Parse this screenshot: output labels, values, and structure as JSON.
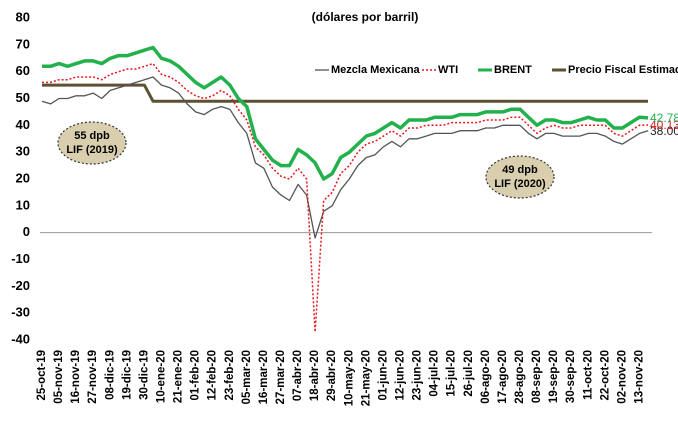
{
  "chart_data": {
    "type": "line",
    "subtitle": "(dólares por barril)",
    "categories": [
      "25-oct-19",
      null,
      "05-nov-19",
      null,
      "16-nov-19",
      null,
      "27-nov-19",
      null,
      "08-dic-19",
      null,
      "19-dic-19",
      null,
      "30-dic-19",
      null,
      "10-ene-20",
      null,
      "21-ene-20",
      null,
      "01-feb-20",
      null,
      "12-feb-20",
      null,
      "23-feb-20",
      null,
      "05-mar-20",
      null,
      "16-mar-20",
      null,
      "27-mar-20",
      null,
      "07-abr-20",
      null,
      "18-abr-20",
      null,
      "29-abr-20",
      null,
      "10-may-20",
      null,
      "21-may-20",
      null,
      "01-jun-20",
      null,
      "12-jun-20",
      null,
      "23-jun-20",
      null,
      "04-jul-20",
      null,
      "15-jul-20",
      null,
      "26-jul-20",
      null,
      "06-ago-20",
      null,
      "17-ago-20",
      null,
      "28-ago-20",
      null,
      "08-sep-20",
      null,
      "19-sep-20",
      null,
      "30-sep-20",
      null,
      "11-oct-20",
      null,
      "22-oct-20",
      null,
      "02-nov-20",
      null,
      "13-nov-20",
      null
    ],
    "series": [
      {
        "name": "Mezcla Mexicana",
        "color": "#555555",
        "style": "solid",
        "width": 1.3,
        "values": [
          49,
          48,
          50,
          50,
          51,
          51,
          52,
          50,
          53,
          54,
          55,
          56,
          57,
          58,
          55,
          54,
          52,
          48,
          45,
          44,
          46,
          47,
          46,
          41,
          37,
          26,
          24,
          17,
          14,
          12,
          18,
          14,
          -2,
          8,
          10,
          16,
          20,
          25,
          28,
          29,
          32,
          34,
          32,
          35,
          35,
          36,
          37,
          37,
          37,
          38,
          38,
          38,
          39,
          39,
          40,
          40,
          40,
          37,
          35,
          37,
          37,
          36,
          36,
          36,
          37,
          37,
          36,
          34,
          33,
          35,
          37,
          38.0
        ],
        "value_labels": [
          null,
          null,
          null,
          null,
          null,
          null,
          null,
          null,
          null,
          null,
          null,
          null,
          null,
          null,
          null,
          null,
          null,
          null,
          null,
          null,
          null,
          null,
          null,
          null,
          null,
          null,
          null,
          null,
          null,
          null,
          null,
          null,
          null,
          null,
          null,
          null,
          null,
          null,
          null,
          null,
          null,
          null,
          null,
          null,
          null,
          null,
          null,
          null,
          null,
          null,
          null,
          null,
          null,
          null,
          null,
          null,
          null,
          null,
          null,
          null,
          null,
          null,
          null,
          null,
          null,
          null,
          null,
          null,
          null,
          null,
          null,
          "38.00"
        ]
      },
      {
        "name": "WTI",
        "color": "#e8161c",
        "style": "dotted",
        "width": 1.5,
        "values": [
          56,
          56,
          57,
          57,
          58,
          58,
          58,
          57,
          59,
          60,
          61,
          61,
          62,
          63,
          59,
          58,
          56,
          53,
          51,
          50,
          51,
          53,
          51,
          46,
          42,
          32,
          29,
          24,
          21,
          20,
          24,
          20,
          -37,
          12,
          15,
          22,
          25,
          30,
          33,
          34,
          36,
          38,
          36,
          39,
          39,
          40,
          40,
          40,
          41,
          41,
          41,
          41,
          42,
          42,
          42,
          43,
          43,
          40,
          37,
          39,
          40,
          39,
          39,
          40,
          40,
          40,
          40,
          37,
          36,
          38,
          40,
          40.13
        ],
        "value_labels": [
          null,
          null,
          null,
          null,
          null,
          null,
          null,
          null,
          null,
          null,
          null,
          null,
          null,
          null,
          null,
          null,
          null,
          null,
          null,
          null,
          null,
          null,
          null,
          null,
          null,
          null,
          null,
          null,
          null,
          null,
          null,
          null,
          null,
          null,
          null,
          null,
          null,
          null,
          null,
          null,
          null,
          null,
          null,
          null,
          null,
          null,
          null,
          null,
          null,
          null,
          null,
          null,
          null,
          null,
          null,
          null,
          null,
          null,
          null,
          null,
          null,
          null,
          null,
          null,
          null,
          null,
          null,
          null,
          null,
          null,
          null,
          "40.13"
        ]
      },
      {
        "name": "BRENT",
        "color": "#22b14c",
        "style": "solid",
        "width": 3.5,
        "values": [
          62,
          62,
          63,
          62,
          63,
          64,
          64,
          63,
          65,
          66,
          66,
          67,
          68,
          69,
          65,
          64,
          62,
          59,
          56,
          54,
          56,
          58,
          55,
          50,
          47,
          35,
          31,
          27,
          25,
          25,
          31,
          29,
          26,
          20,
          22,
          28,
          30,
          33,
          36,
          37,
          39,
          41,
          39,
          42,
          42,
          42,
          43,
          43,
          43,
          44,
          44,
          44,
          45,
          45,
          45,
          46,
          46,
          43,
          40,
          42,
          42,
          41,
          41,
          42,
          43,
          42,
          42,
          39,
          39,
          41,
          43,
          42.78
        ],
        "value_labels": [
          null,
          null,
          null,
          null,
          null,
          null,
          null,
          null,
          null,
          null,
          null,
          null,
          null,
          null,
          null,
          null,
          null,
          null,
          null,
          null,
          null,
          null,
          null,
          null,
          null,
          null,
          null,
          null,
          null,
          null,
          null,
          null,
          null,
          null,
          null,
          null,
          null,
          null,
          null,
          null,
          null,
          null,
          null,
          null,
          null,
          null,
          null,
          null,
          null,
          null,
          null,
          null,
          null,
          null,
          null,
          null,
          null,
          null,
          null,
          null,
          null,
          null,
          null,
          null,
          null,
          null,
          null,
          null,
          null,
          null,
          null,
          "42.78"
        ]
      },
      {
        "name": "Precio Fiscal Estimado",
        "color": "#5c5233",
        "style": "solid",
        "width": 3,
        "values": [
          55,
          55,
          55,
          55,
          55,
          55,
          55,
          55,
          55,
          55,
          55,
          55,
          55,
          49,
          49,
          49,
          49,
          49,
          49,
          49,
          49,
          49,
          49,
          49,
          49,
          49,
          49,
          49,
          49,
          49,
          49,
          49,
          49,
          49,
          49,
          49,
          49,
          49,
          49,
          49,
          49,
          49,
          49,
          49,
          49,
          49,
          49,
          49,
          49,
          49,
          49,
          49,
          49,
          49,
          49,
          49,
          49,
          49,
          49,
          49,
          49,
          49,
          49,
          49,
          49,
          49,
          49,
          49,
          49,
          49,
          49,
          49
        ]
      }
    ],
    "ylim": [
      -40,
      80
    ],
    "yticks": [
      -40,
      -30,
      -20,
      -10,
      0,
      10,
      20,
      30,
      40,
      50,
      60,
      70,
      80
    ],
    "annotations": [
      {
        "lines": [
          "55 dpb",
          "LIF (2019)"
        ]
      },
      {
        "lines": [
          "49 dpb",
          "LIF (2020)"
        ]
      }
    ]
  }
}
